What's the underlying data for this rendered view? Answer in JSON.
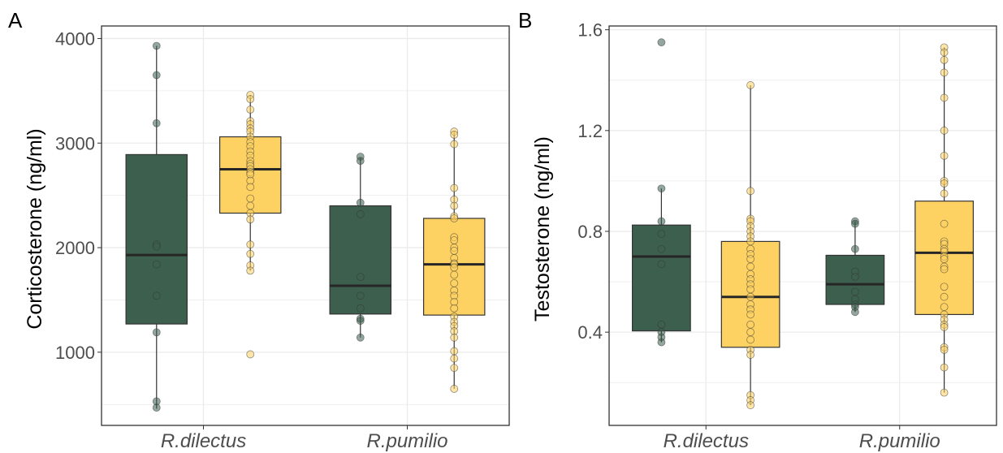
{
  "colors": {
    "group_1": "#3d5f4e",
    "group_2": "#fdd262",
    "grid": "#ebebeb",
    "panel_border": "#333333",
    "tick_text": "#4d4d4d"
  },
  "chart_data": [
    {
      "type": "box",
      "panel": "A",
      "ylabel": "Corticosterone (ng/ml)",
      "xlabel": "",
      "categories": [
        "R.dilectus",
        "R.pumilio"
      ],
      "ylim": [
        300,
        4120
      ],
      "yticks": [
        1000,
        2000,
        3000,
        4000
      ],
      "ytick_labels": [
        "1000",
        "2000",
        "3000",
        "4000"
      ],
      "grid": true,
      "legend": "none",
      "series": [
        {
          "color_key": "group_1",
          "boxes": [
            {
              "category": "R.dilectus",
              "whisker_low": 460,
              "q1": 1270,
              "median": 1930,
              "q3": 2890,
              "whisker_high": 3930,
              "points": [
                3930,
                3650,
                3190,
                2030,
                2010,
                1840,
                1540,
                1190,
                530,
                470
              ]
            },
            {
              "category": "R.pumilio",
              "whisker_low": 1140,
              "q1": 1365,
              "median": 1635,
              "q3": 2400,
              "whisker_high": 2860,
              "points": [
                2870,
                2830,
                2430,
                2320,
                1720,
                1540,
                1420,
                1320,
                1300,
                1140
              ]
            }
          ]
        },
        {
          "color_key": "group_2",
          "boxes": [
            {
              "category": "R.dilectus",
              "whisker_low": 1780,
              "q1": 2330,
              "median": 2750,
              "q3": 3060,
              "whisker_high": 3460,
              "points": [
                3460,
                3420,
                3320,
                3210,
                3180,
                3140,
                3110,
                3060,
                3010,
                2970,
                2920,
                2880,
                2830,
                2800,
                2780,
                2750,
                2720,
                2700,
                2640,
                2580,
                2470,
                2400,
                2330,
                2270,
                2030,
                1940,
                1830,
                1780,
                980
              ]
            },
            {
              "category": "R.pumilio",
              "whisker_low": 650,
              "q1": 1355,
              "median": 1840,
              "q3": 2280,
              "whisker_high": 3110,
              "points": [
                3110,
                3080,
                2990,
                2570,
                2460,
                2400,
                2300,
                2280,
                2100,
                2070,
                2000,
                1970,
                1900,
                1850,
                1840,
                1810,
                1740,
                1660,
                1590,
                1540,
                1480,
                1420,
                1340,
                1290,
                1250,
                1200,
                1140,
                1010,
                940,
                850,
                650
              ]
            }
          ]
        }
      ]
    },
    {
      "type": "box",
      "panel": "B",
      "ylabel": "Testosterone (ng/ml)",
      "xlabel": "",
      "categories": [
        "R.dilectus",
        "R.pumilio"
      ],
      "ylim": [
        0.03,
        1.615
      ],
      "yticks": [
        0.4,
        0.8,
        1.2,
        1.6
      ],
      "ytick_labels": [
        "0.4",
        "0.8",
        "1.2",
        "1.6"
      ],
      "grid": true,
      "legend": "none",
      "series": [
        {
          "color_key": "group_1",
          "boxes": [
            {
              "category": "R.dilectus",
              "whisker_low": 0.36,
              "q1": 0.405,
              "median": 0.7,
              "q3": 0.825,
              "whisker_high": 0.97,
              "points": [
                1.55,
                0.97,
                0.84,
                0.79,
                0.73,
                0.67,
                0.43,
                0.4,
                0.38,
                0.36
              ]
            },
            {
              "category": "R.pumilio",
              "whisker_low": 0.48,
              "q1": 0.51,
              "median": 0.59,
              "q3": 0.705,
              "whisker_high": 0.84,
              "points": [
                0.84,
                0.83,
                0.73,
                0.64,
                0.62,
                0.56,
                0.53,
                0.51,
                0.5,
                0.48
              ]
            }
          ]
        },
        {
          "color_key": "group_2",
          "boxes": [
            {
              "category": "R.dilectus",
              "whisker_low": 0.11,
              "q1": 0.34,
              "median": 0.54,
              "q3": 0.76,
              "whisker_high": 1.38,
              "points": [
                1.38,
                0.96,
                0.85,
                0.84,
                0.82,
                0.8,
                0.78,
                0.76,
                0.73,
                0.71,
                0.69,
                0.66,
                0.63,
                0.61,
                0.59,
                0.57,
                0.54,
                0.51,
                0.49,
                0.47,
                0.43,
                0.4,
                0.37,
                0.33,
                0.31,
                0.15,
                0.13,
                0.11
              ]
            },
            {
              "category": "R.pumilio",
              "whisker_low": 0.16,
              "q1": 0.47,
              "median": 0.715,
              "q3": 0.92,
              "whisker_high": 1.53,
              "points": [
                1.53,
                1.51,
                1.48,
                1.43,
                1.33,
                1.2,
                1.1,
                1.0,
                0.99,
                0.95,
                0.83,
                0.76,
                0.75,
                0.73,
                0.72,
                0.7,
                0.69,
                0.66,
                0.65,
                0.58,
                0.54,
                0.5,
                0.47,
                0.45,
                0.43,
                0.42,
                0.34,
                0.33,
                0.26,
                0.16
              ]
            }
          ]
        }
      ]
    }
  ]
}
